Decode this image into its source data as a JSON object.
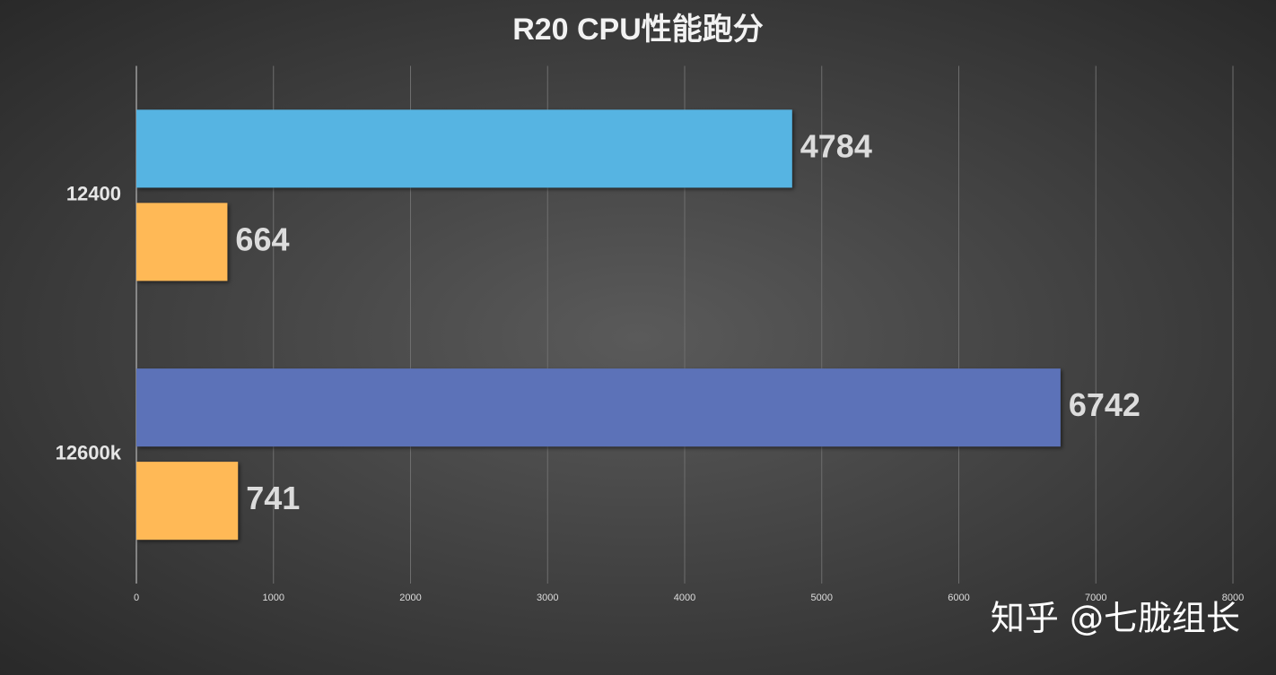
{
  "chart_data": {
    "type": "barh",
    "title": "R20 CPU性能跑分",
    "categories": [
      "12400",
      "12600k"
    ],
    "series": [
      {
        "values": [
          4784,
          6742
        ],
        "colors": [
          "#56b4e2",
          "#5b72b8"
        ]
      },
      {
        "values": [
          664,
          741
        ],
        "colors": [
          "#ffb957",
          "#ffb957"
        ]
      }
    ],
    "xlim": [
      0,
      8000
    ],
    "xticks": [
      0,
      1000,
      2000,
      3000,
      4000,
      5000,
      6000,
      7000,
      8000
    ],
    "grid": true,
    "watermark": "知乎 @七胧组长"
  }
}
